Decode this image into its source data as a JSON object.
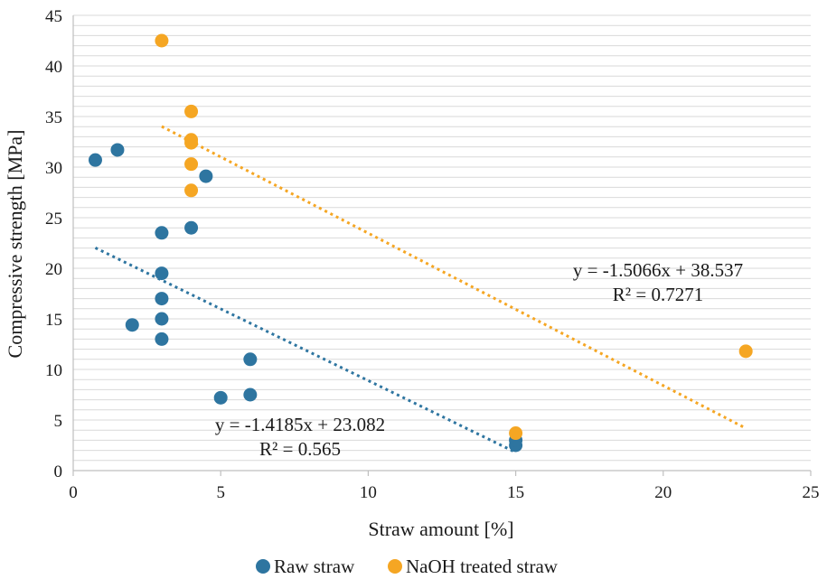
{
  "chart_data": {
    "type": "scatter",
    "title": "",
    "xlabel": "Straw amount [%]",
    "ylabel": "Compressive strength [MPa]",
    "xlim": [
      0,
      25
    ],
    "ylim": [
      0,
      45
    ],
    "x_ticks": [
      0,
      5,
      10,
      15,
      20,
      25
    ],
    "y_ticks": [
      0,
      5,
      10,
      15,
      20,
      25,
      30,
      35,
      40,
      45
    ],
    "grid": true,
    "legend_position": "bottom",
    "series": [
      {
        "name": "Raw straw",
        "color": "#2e75a0",
        "points": [
          {
            "x": 0.75,
            "y": 30.7
          },
          {
            "x": 1.5,
            "y": 31.7
          },
          {
            "x": 2.0,
            "y": 14.4
          },
          {
            "x": 3.0,
            "y": 23.5
          },
          {
            "x": 3.0,
            "y": 19.5
          },
          {
            "x": 3.0,
            "y": 17.0
          },
          {
            "x": 3.0,
            "y": 15.0
          },
          {
            "x": 3.0,
            "y": 13.0
          },
          {
            "x": 4.0,
            "y": 24.0
          },
          {
            "x": 4.5,
            "y": 29.1
          },
          {
            "x": 5.0,
            "y": 7.2
          },
          {
            "x": 6.0,
            "y": 7.5
          },
          {
            "x": 6.0,
            "y": 11.0
          },
          {
            "x": 15.0,
            "y": 2.5
          },
          {
            "x": 15.0,
            "y": 3.0
          }
        ],
        "trendline": {
          "x_range": [
            0.75,
            15.0
          ],
          "slope": -1.4185,
          "intercept": 23.082,
          "equation": "y = -1.4185x + 23.082",
          "r2": "R² = 0.565"
        }
      },
      {
        "name": "NaOH treated straw",
        "color": "#f5a623",
        "points": [
          {
            "x": 3.0,
            "y": 42.5
          },
          {
            "x": 4.0,
            "y": 35.5
          },
          {
            "x": 4.0,
            "y": 32.7
          },
          {
            "x": 4.0,
            "y": 32.4
          },
          {
            "x": 4.0,
            "y": 30.3
          },
          {
            "x": 4.0,
            "y": 27.7
          },
          {
            "x": 15.0,
            "y": 3.7
          },
          {
            "x": 22.8,
            "y": 11.8
          }
        ],
        "trendline": {
          "x_range": [
            3.0,
            22.8
          ],
          "slope": -1.5066,
          "intercept": 38.537,
          "equation": "y = -1.5066x + 38.537",
          "r2": "R² = 0.7271"
        }
      }
    ]
  }
}
